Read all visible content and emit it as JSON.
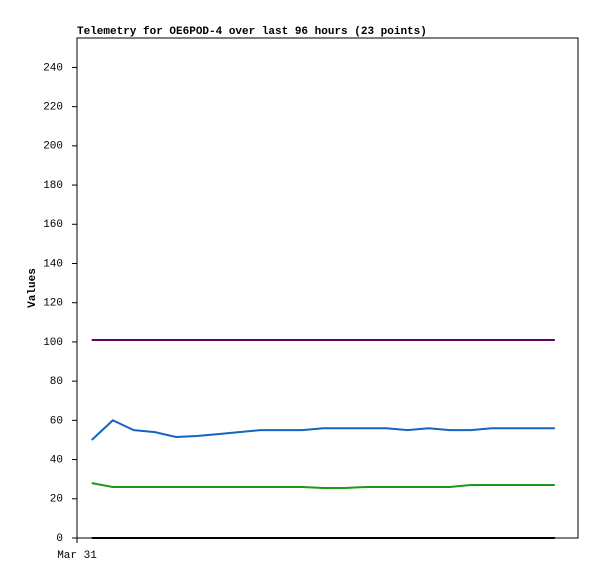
{
  "chart_data": {
    "type": "line",
    "title": "Telemetry for OE6POD-4 over last 96 hours (23 points)",
    "y_label": "Values",
    "x": [
      0,
      1,
      2,
      3,
      4,
      5,
      6,
      7,
      8,
      9,
      10,
      11,
      12,
      13,
      14,
      15,
      16,
      17,
      18,
      19,
      20,
      21,
      22
    ],
    "xlim": [
      -0.7,
      23.1
    ],
    "xticks": [
      {
        "value": -0.7,
        "label": "Mar 31"
      }
    ],
    "ylim": [
      0,
      255
    ],
    "yticks": [
      0,
      20,
      40,
      60,
      80,
      100,
      120,
      140,
      160,
      180,
      200,
      220,
      240
    ],
    "grid": false,
    "series": [
      {
        "color": "#660066",
        "values": [
          101,
          101,
          101,
          101,
          101,
          101,
          101,
          101,
          101,
          101,
          101,
          101,
          101,
          101,
          101,
          101,
          101,
          101,
          101,
          101,
          101,
          101,
          101
        ]
      },
      {
        "color": "#1565c0",
        "values": [
          50,
          60,
          55,
          54,
          51.5,
          52,
          53,
          54,
          55,
          55,
          55,
          56,
          56,
          56,
          56,
          55,
          56,
          55,
          55,
          56,
          56,
          56,
          56
        ]
      },
      {
        "color": "#1a9a1a",
        "values": [
          28,
          26,
          26,
          26,
          26,
          26,
          26,
          26,
          26,
          26,
          26,
          25.5,
          25.5,
          26,
          26,
          26,
          26,
          26,
          27,
          27,
          27,
          27,
          27
        ]
      },
      {
        "color": "#000000",
        "values": [
          0,
          0,
          0,
          0,
          0,
          0,
          0,
          0,
          0,
          0,
          0,
          0,
          0,
          0,
          0,
          0,
          0,
          0,
          0,
          0,
          0,
          0,
          0
        ]
      }
    ]
  }
}
